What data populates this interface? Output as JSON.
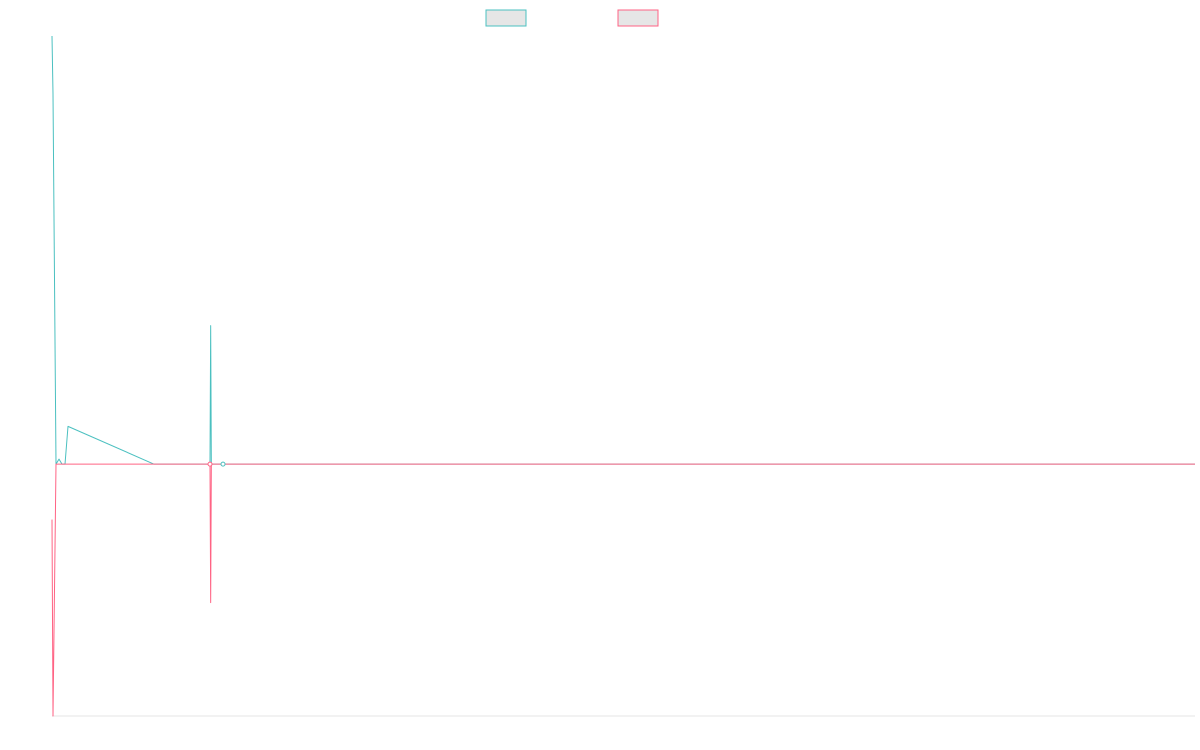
{
  "chart_data": {
    "type": "line",
    "title": "",
    "xlabel": "",
    "ylabel": "",
    "legend_placement": "top-center",
    "grid": false,
    "ylim": [
      -100,
      170
    ],
    "x": [
      0,
      0.5,
      2.0,
      3.0,
      4.0,
      5.0,
      6.0,
      37.5,
      58.0,
      59.0,
      60.0,
      61.0,
      64.0,
      384.0
    ],
    "series": [
      {
        "name": "",
        "color": "#4bc0c0",
        "fill": "#e6e6e6",
        "values": [
          170,
          147,
          0,
          2,
          0,
          0,
          15,
          0,
          0,
          55,
          0,
          0,
          0,
          0
        ]
      },
      {
        "name": "",
        "color": "#ff6384",
        "fill": "#e6e6e6",
        "values": [
          -22,
          -100,
          0,
          0,
          0,
          0,
          0,
          0,
          0,
          -55,
          0,
          0,
          0,
          0
        ]
      }
    ],
    "markers": [
      {
        "series": 1,
        "index": 8
      },
      {
        "series": 0,
        "index": 12
      }
    ]
  }
}
